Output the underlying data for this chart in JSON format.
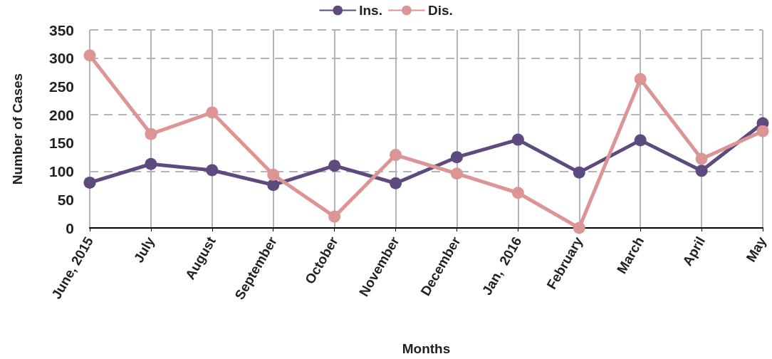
{
  "chart_data": {
    "type": "line",
    "xlabel": "Months",
    "ylabel": "Number of Cases",
    "categories": [
      "June, 2015",
      "July",
      "August",
      "September",
      "October",
      "November",
      "December",
      "Jan,  2016",
      "February",
      "March",
      "April",
      "May"
    ],
    "series": [
      {
        "name": "Ins.",
        "color": "#5d4a7e",
        "values": [
          80,
          113,
          102,
          76,
          110,
          79,
          125,
          156,
          98,
          155,
          101,
          185
        ]
      },
      {
        "name": "Dis.",
        "color": "#dc9494",
        "values": [
          305,
          166,
          204,
          94,
          20,
          129,
          96,
          62,
          0,
          263,
          122,
          171
        ]
      }
    ],
    "ylim": [
      0,
      350
    ],
    "yticks": [
      0,
      50,
      100,
      150,
      200,
      250,
      300,
      350
    ],
    "grid": true,
    "legend": "top",
    "marker": "circle",
    "line_style": "solid"
  }
}
